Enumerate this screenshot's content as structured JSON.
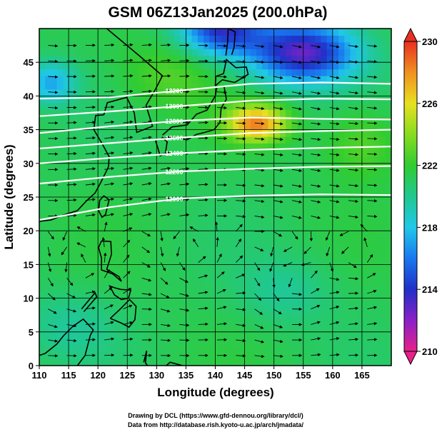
{
  "chart_data": {
    "type": "heatmap",
    "title": "GSM 06Z13Jan2025 (200.0hPa)",
    "xlabel": "Longitude (degrees)",
    "ylabel": "Latitude  (degrees)",
    "xlim": [
      110,
      170
    ],
    "ylim": [
      0,
      50
    ],
    "xticks": [
      "110",
      "115",
      "120",
      "125",
      "130",
      "135",
      "140",
      "145",
      "150",
      "155",
      "160",
      "165"
    ],
    "yticks": [
      "0",
      "5",
      "10",
      "15",
      "20",
      "25",
      "30",
      "35",
      "40",
      "45"
    ],
    "colorbar": {
      "min": 210,
      "max": 230,
      "ticks": [
        "210",
        "214",
        "218",
        "222",
        "226",
        "230"
      ]
    },
    "field_features": [
      {
        "kind": "maximum",
        "lon": 147,
        "lat": 36,
        "value": 228
      },
      {
        "kind": "minimum",
        "lon": 155,
        "lat": 46,
        "value": 213
      },
      {
        "kind": "minimum",
        "lon": 143,
        "lat": 49,
        "value": 214
      },
      {
        "kind": "minimum",
        "lon": 113,
        "lat": 42,
        "value": 217
      }
    ],
    "contours": [
      {
        "label": "12000",
        "lats": [
          21.6,
          23.5,
          24.8,
          25.2,
          25.4,
          25.3
        ]
      },
      {
        "label": "12200",
        "lats": [
          27.0,
          28.0,
          28.8,
          29.2,
          29.5,
          29.6
        ]
      },
      {
        "label": "12400",
        "lats": [
          30.0,
          30.8,
          31.5,
          32.0,
          32.3,
          32.5
        ]
      },
      {
        "label": "12600",
        "lats": [
          32.2,
          33.0,
          33.8,
          34.5,
          34.8,
          35.0
        ]
      },
      {
        "label": "12800",
        "lats": [
          34.5,
          35.5,
          36.3,
          36.8,
          36.6,
          36.5
        ]
      },
      {
        "label": "13000",
        "lats": [
          37.0,
          37.7,
          38.5,
          39.3,
          39.6,
          39.5
        ]
      },
      {
        "label": "13200",
        "lats": [
          39.6,
          39.8,
          40.8,
          41.8,
          42.0,
          41.8
        ]
      }
    ],
    "contour_lons": [
      110,
      122,
      134,
      146,
      158,
      170
    ],
    "circulations": [
      {
        "lon": 136,
        "lat": 15
      },
      {
        "lon": 117,
        "lat": 13
      },
      {
        "lon": 153,
        "lat": 11
      },
      {
        "lon": 164,
        "lat": 15
      }
    ]
  },
  "credits": {
    "line1": "Drawing by DCL (https://www.gfd-dennou.org/library/dcl/)",
    "line2": "Data from http://database.rish.kyoto-u.ac.jp/arch/jmadata/"
  }
}
